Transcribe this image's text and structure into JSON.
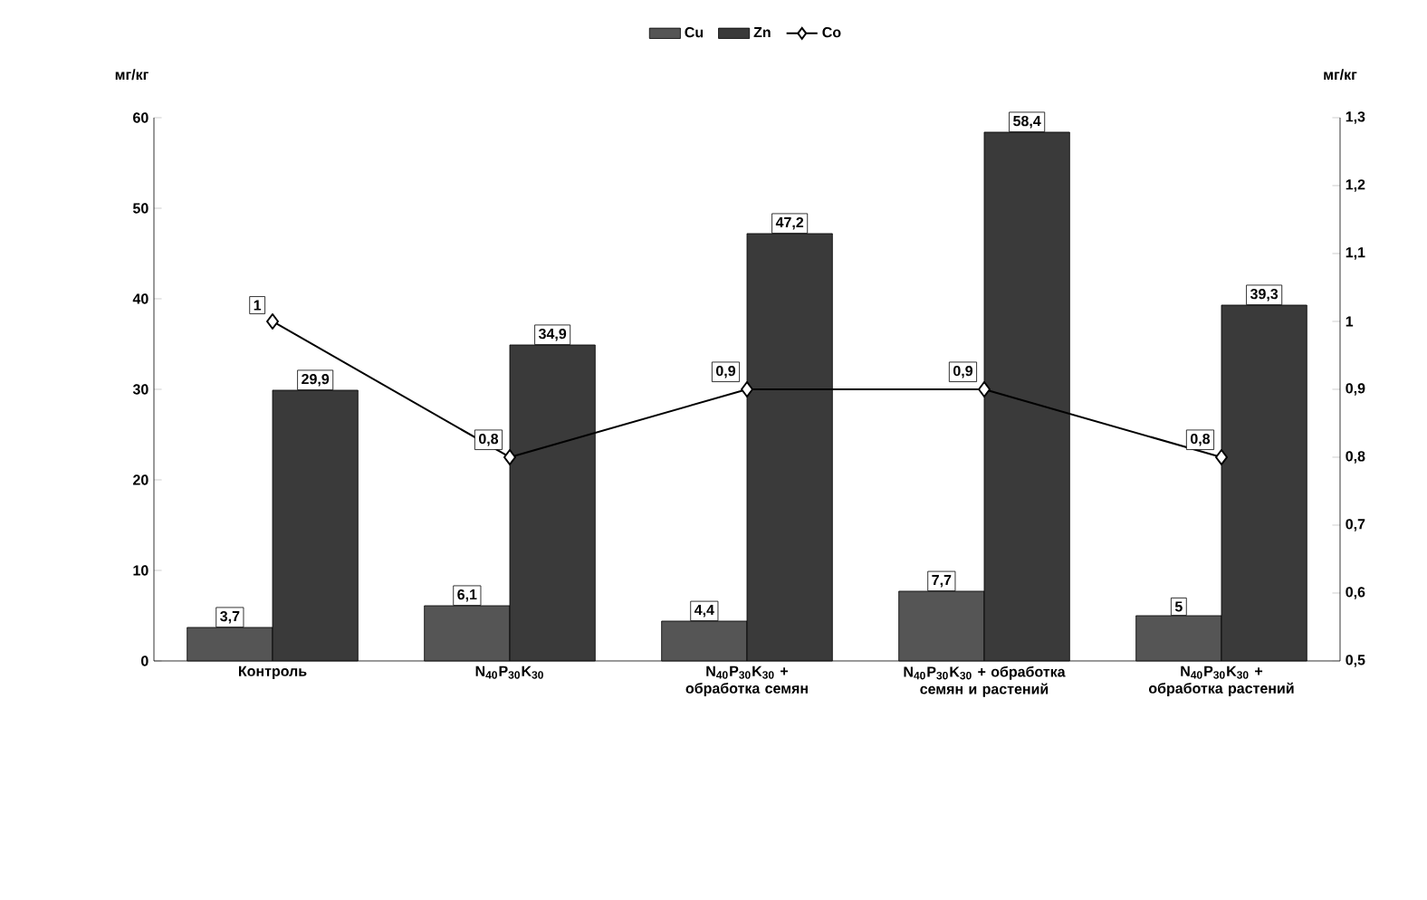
{
  "chart_data": {
    "type": "bar",
    "categories": [
      "Контроль",
      "N$_{40}$P$_{30}$K$_{30}$",
      "N$_{40}$P$_{30}$K$_{30}$ + обработка семян",
      "N$_{40}$P$_{30}$K$_{30}$ + обработка семян и растений",
      "N$_{40}$P$_{30}$K$_{30}$ + обработка растений"
    ],
    "series": [
      {
        "name": "Cu",
        "color": "#555555",
        "values": [
          3.7,
          6.1,
          4.4,
          7.7,
          5
        ],
        "value_labels": [
          "3,7",
          "6,1",
          "4,4",
          "7,7",
          "5"
        ]
      },
      {
        "name": "Zn",
        "color": "#3a3a3a",
        "values": [
          29.9,
          34.9,
          47.2,
          58.4,
          39.3
        ],
        "value_labels": [
          "29,9",
          "34,9",
          "47,2",
          "58,4",
          "39,3"
        ]
      },
      {
        "name": "Co",
        "type": "line",
        "axis": "y2",
        "color": "#000000",
        "values": [
          1,
          0.8,
          0.9,
          0.9,
          0.8
        ],
        "value_labels": [
          "1",
          "0,8",
          "0,9",
          "0,9",
          "0,8"
        ]
      }
    ],
    "ylabel": "мг/кг",
    "y2label": "мг/кг",
    "ylim": [
      0,
      60
    ],
    "yticks": [
      0,
      10,
      20,
      30,
      40,
      50,
      60
    ],
    "y2lim": [
      0.5,
      1.3
    ],
    "y2ticks": [
      {
        "value": 0.5,
        "label": "0,5"
      },
      {
        "value": 0.6,
        "label": "0,6"
      },
      {
        "value": 0.7,
        "label": "0,7"
      },
      {
        "value": 0.8,
        "label": "0,8"
      },
      {
        "value": 0.9,
        "label": "0,9"
      },
      {
        "value": 1,
        "label": "1"
      },
      {
        "value": 1.1,
        "label": "1,1"
      },
      {
        "value": 1.2,
        "label": "1,2"
      },
      {
        "value": 1.3,
        "label": "1,3"
      }
    ],
    "legend": "top",
    "marker": "diamond",
    "line_style": "solid"
  }
}
